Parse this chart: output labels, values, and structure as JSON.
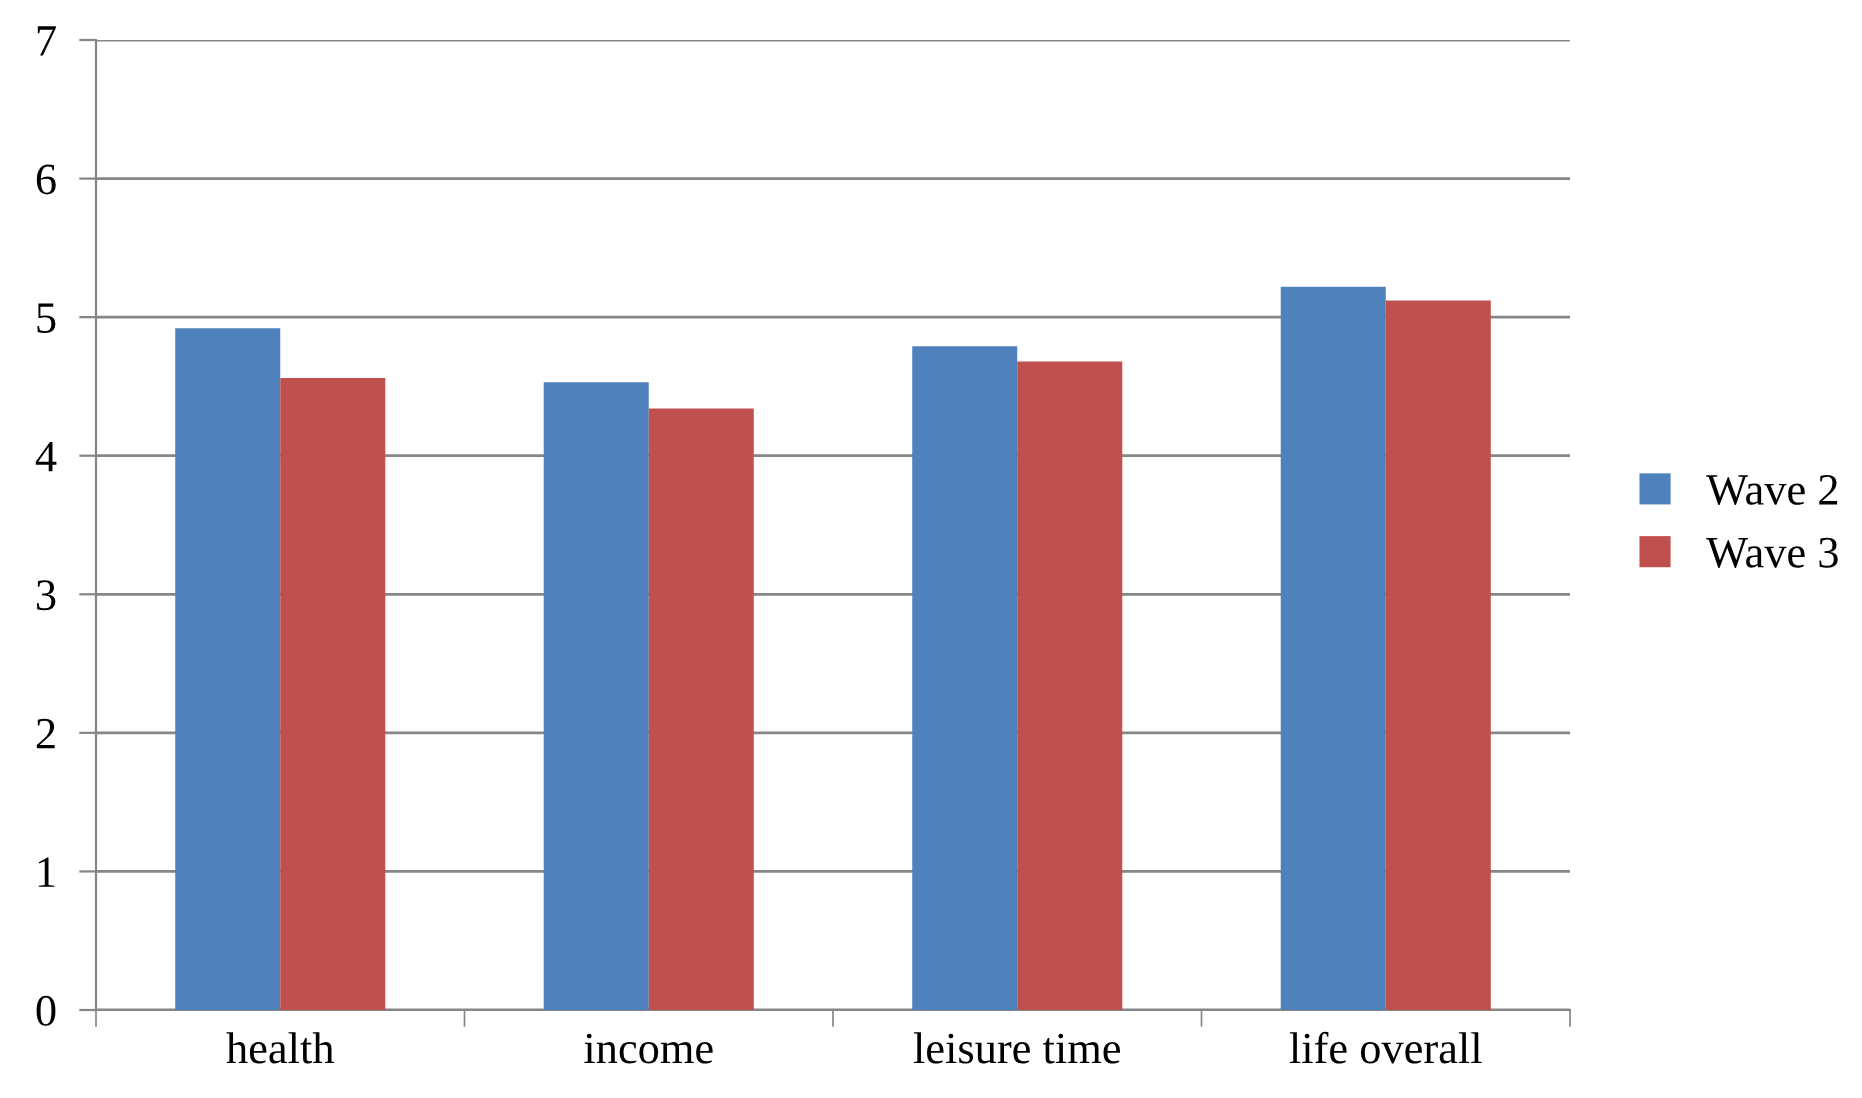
{
  "chart_data": {
    "type": "bar",
    "categories": [
      "health",
      "income",
      "leisure time",
      "life overall"
    ],
    "series": [
      {
        "name": "Wave 2",
        "color": "#4f81bd",
        "values": [
          4.92,
          4.53,
          4.79,
          5.22
        ]
      },
      {
        "name": "Wave 3",
        "color": "#c0504d",
        "values": [
          4.56,
          4.34,
          4.68,
          5.12
        ]
      }
    ],
    "ylim": [
      0,
      7
    ],
    "yticks": [
      0,
      1,
      2,
      3,
      4,
      5,
      6,
      7
    ],
    "grid": "y",
    "legend": "right"
  }
}
